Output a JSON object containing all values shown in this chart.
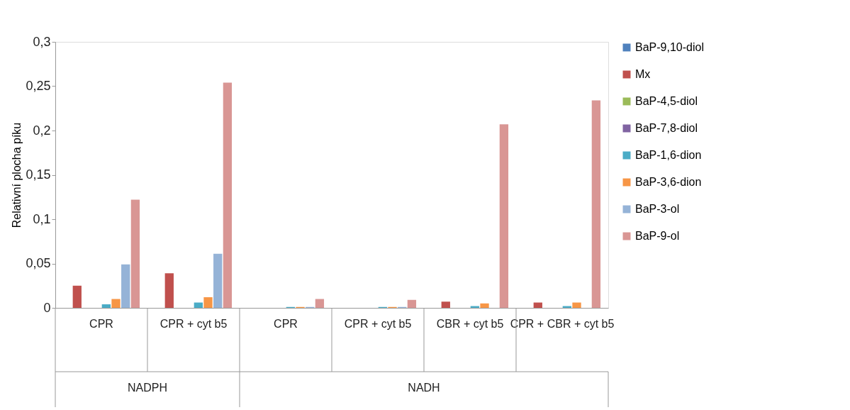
{
  "chart_data": {
    "type": "bar",
    "ylabel": "Relativní plocha píku",
    "categories": [
      "CPR",
      "CPR + cyt b5",
      "CPR",
      "CPR + cyt b5",
      "CBR + cyt b5",
      "CPR + CBR + cyt b5"
    ],
    "annotations": [
      "NADPH",
      "NADH"
    ],
    "series": [
      {
        "name": "BaP-9,10-diol",
        "color": "#4f81bd",
        "values": [
          0,
          0,
          0,
          0,
          0,
          0
        ]
      },
      {
        "name": "Mx",
        "color": "#c0504d",
        "values": [
          0.025,
          0.039,
          0,
          0,
          0.007,
          0.006
        ]
      },
      {
        "name": "BaP-4,5-diol",
        "color": "#9bbb59",
        "values": [
          0,
          0,
          0,
          0,
          0,
          0
        ]
      },
      {
        "name": "BaP-7,8-diol",
        "color": "#8064a2",
        "values": [
          0,
          0,
          0,
          0,
          0,
          0
        ]
      },
      {
        "name": "BaP-1,6-dion",
        "color": "#4bacc6",
        "values": [
          0.004,
          0.006,
          0.001,
          0.001,
          0.002,
          0.002
        ]
      },
      {
        "name": "BaP-3,6-dion",
        "color": "#f79646",
        "values": [
          0.01,
          0.012,
          0.001,
          0.001,
          0.005,
          0.006
        ]
      },
      {
        "name": "BaP-3-ol",
        "color": "#95b3d7",
        "values": [
          0.049,
          0.061,
          0.001,
          0.001,
          0,
          0
        ]
      },
      {
        "name": "BaP-9-ol",
        "color": "#d99694",
        "values": [
          0.122,
          0.254,
          0.01,
          0.009,
          0.207,
          0.234
        ]
      }
    ],
    "ylim": [
      0,
      0.3
    ],
    "yticks": [
      0,
      {
        "value": 0.05,
        "label": "0,05"
      },
      {
        "value": 0.1,
        "label": "0,1"
      },
      {
        "value": 0.15,
        "label": "0,15"
      },
      {
        "value": 0.2,
        "label": "0,2"
      },
      {
        "value": 0.25,
        "label": "0,25"
      },
      {
        "value": 0.3,
        "label": "0,3"
      }
    ],
    "grid": false,
    "legend": "right"
  }
}
